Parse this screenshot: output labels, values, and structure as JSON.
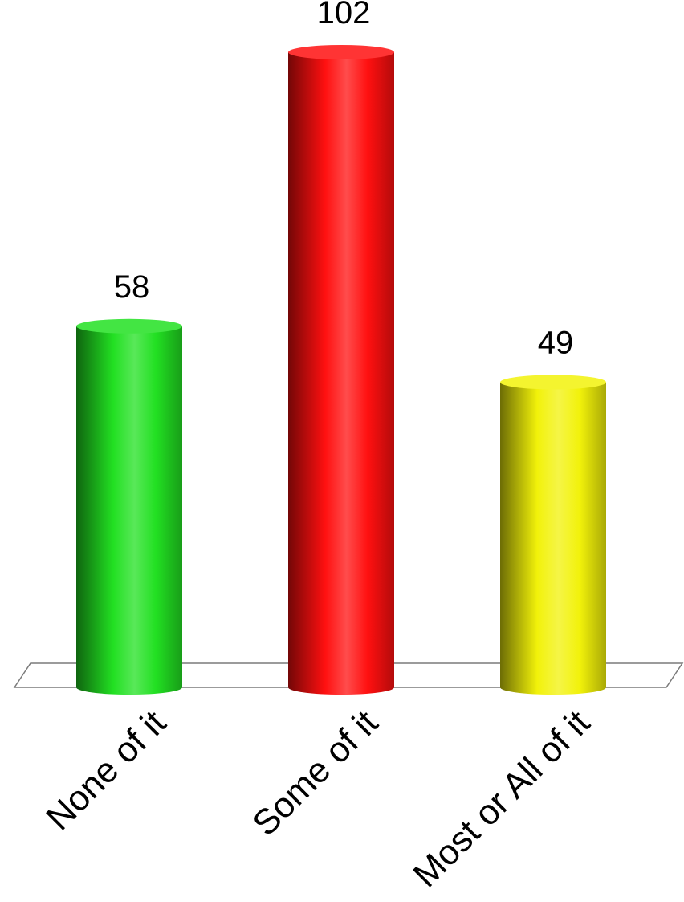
{
  "chart_data": {
    "type": "bar",
    "categories": [
      "None of it",
      "Some of it",
      "Most or All of it"
    ],
    "values": [
      58,
      102,
      49
    ],
    "colors": [
      "#22e022",
      "#ff1010",
      "#f2f20a"
    ],
    "title": "",
    "xlabel": "",
    "ylabel": "",
    "ylim": [
      0,
      102
    ],
    "grid": false,
    "legend": "none"
  }
}
